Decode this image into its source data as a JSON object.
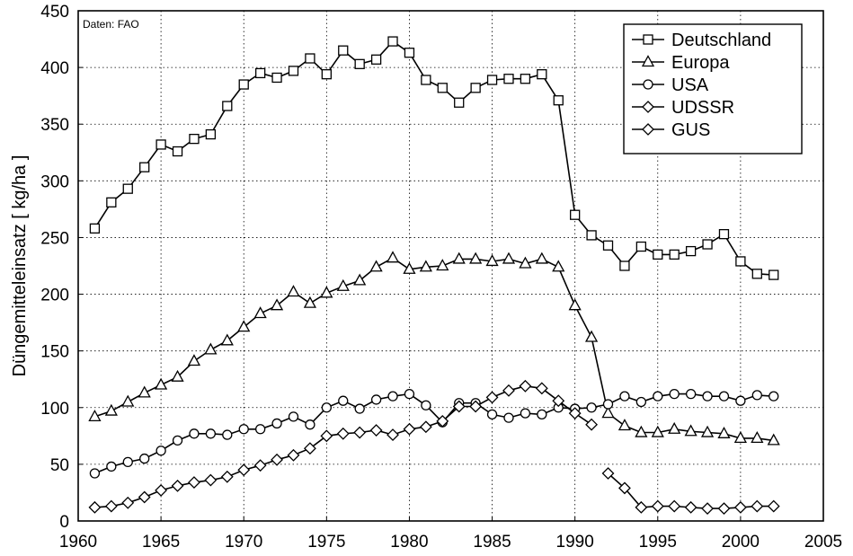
{
  "chart_data": {
    "type": "line",
    "title": "",
    "xlabel": "",
    "ylabel": "Düngemitteleinsatz [ kg/ha ]",
    "annotation": "Daten: FAO",
    "xlim": [
      1960,
      2005
    ],
    "ylim": [
      0,
      450
    ],
    "xticks": [
      1960,
      1965,
      1970,
      1975,
      1980,
      1985,
      1990,
      1995,
      2000,
      2005
    ],
    "yticks": [
      0,
      50,
      100,
      150,
      200,
      250,
      300,
      350,
      400,
      450
    ],
    "grid": true,
    "legend_position": "top-right",
    "series": [
      {
        "name": "Deutschland",
        "marker": "square",
        "x": [
          1961,
          1962,
          1963,
          1964,
          1965,
          1966,
          1967,
          1968,
          1969,
          1970,
          1971,
          1972,
          1973,
          1974,
          1975,
          1976,
          1977,
          1978,
          1979,
          1980,
          1981,
          1982,
          1983,
          1984,
          1985,
          1986,
          1987,
          1988,
          1989,
          1990,
          1991,
          1992,
          1993,
          1994,
          1995,
          1996,
          1997,
          1998,
          1999,
          2000,
          2001,
          2002
        ],
        "y": [
          258,
          281,
          293,
          312,
          332,
          326,
          337,
          341,
          366,
          385,
          395,
          391,
          397,
          408,
          394,
          415,
          403,
          407,
          423,
          413,
          389,
          382,
          369,
          382,
          389,
          390,
          390,
          394,
          371,
          270,
          252,
          243,
          225,
          242,
          235,
          235,
          238,
          244,
          253,
          229,
          218,
          217
        ]
      },
      {
        "name": "Europa",
        "marker": "triangle",
        "x": [
          1961,
          1962,
          1963,
          1964,
          1965,
          1966,
          1967,
          1968,
          1969,
          1970,
          1971,
          1972,
          1973,
          1974,
          1975,
          1976,
          1977,
          1978,
          1979,
          1980,
          1981,
          1982,
          1983,
          1984,
          1985,
          1986,
          1987,
          1988,
          1989,
          1990,
          1991,
          1992,
          1993,
          1994,
          1995,
          1996,
          1997,
          1998,
          1999,
          2000,
          2001,
          2002
        ],
        "y": [
          92,
          97,
          105,
          113,
          120,
          127,
          141,
          151,
          159,
          171,
          183,
          190,
          202,
          192,
          201,
          207,
          212,
          224,
          232,
          222,
          224,
          225,
          231,
          231,
          229,
          231,
          227,
          231,
          224,
          190,
          162,
          95,
          84,
          78,
          78,
          81,
          79,
          78,
          77,
          73,
          73,
          71
        ]
      },
      {
        "name": "USA",
        "marker": "circle",
        "x": [
          1961,
          1962,
          1963,
          1964,
          1965,
          1966,
          1967,
          1968,
          1969,
          1970,
          1971,
          1972,
          1973,
          1974,
          1975,
          1976,
          1977,
          1978,
          1979,
          1980,
          1981,
          1982,
          1983,
          1984,
          1985,
          1986,
          1987,
          1988,
          1989,
          1990,
          1991,
          1992,
          1993,
          1994,
          1995,
          1996,
          1997,
          1998,
          1999,
          2000,
          2001,
          2002
        ],
        "y": [
          42,
          48,
          52,
          55,
          62,
          71,
          77,
          77,
          76,
          81,
          81,
          86,
          92,
          85,
          100,
          106,
          99,
          107,
          110,
          112,
          102,
          87,
          104,
          104,
          94,
          91,
          95,
          94,
          100,
          99,
          100,
          103,
          110,
          105,
          110,
          112,
          112,
          110,
          110,
          106,
          111,
          110
        ]
      },
      {
        "name": "UDSSR",
        "marker": "diamond",
        "x": [
          1961,
          1962,
          1963,
          1964,
          1965,
          1966,
          1967,
          1968,
          1969,
          1970,
          1971,
          1972,
          1973,
          1974,
          1975,
          1976,
          1977,
          1978,
          1979,
          1980,
          1981,
          1982,
          1983,
          1984,
          1985,
          1986,
          1987,
          1988,
          1989,
          1990,
          1991
        ],
        "y": [
          12,
          13,
          16,
          21,
          27,
          31,
          34,
          36,
          39,
          45,
          49,
          54,
          58,
          64,
          75,
          77,
          78,
          80,
          76,
          81,
          83,
          88,
          101,
          101,
          109,
          115,
          119,
          117,
          106,
          95,
          85
        ]
      },
      {
        "name": "GUS",
        "marker": "diamond",
        "x": [
          1992,
          1993,
          1994,
          1995,
          1996,
          1997,
          1998,
          1999,
          2000,
          2001,
          2002
        ],
        "y": [
          42,
          29,
          12,
          13,
          13,
          12,
          11,
          11,
          12,
          13,
          13
        ]
      }
    ]
  }
}
